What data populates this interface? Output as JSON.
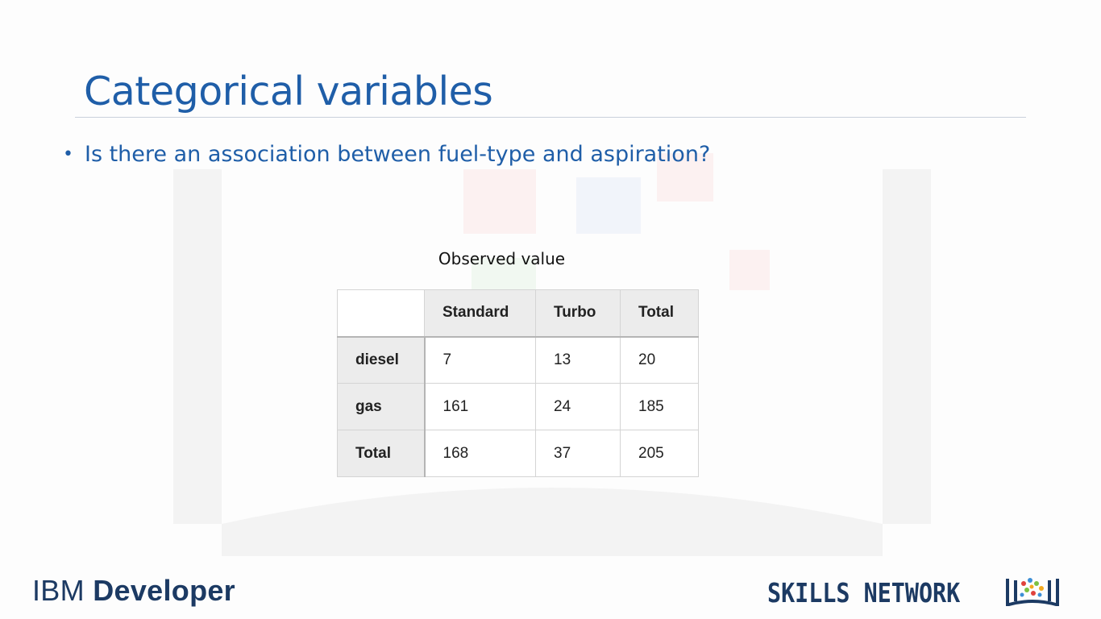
{
  "slide": {
    "title": "Categorical variables",
    "bullet": "Is there an association between fuel-type and aspiration?"
  },
  "table": {
    "caption": "Observed value",
    "columns": [
      "Standard",
      "Turbo",
      "Total"
    ],
    "rows": [
      {
        "label": "diesel",
        "values": [
          "7",
          "13",
          "20"
        ]
      },
      {
        "label": "gas",
        "values": [
          "161",
          "24",
          "185"
        ]
      },
      {
        "label": "Total",
        "values": [
          "168",
          "37",
          "205"
        ]
      }
    ]
  },
  "footer": {
    "ibm_prefix": "IBM",
    "ibm_suffix": "Developer",
    "skills": "SKILLS NETWORK"
  },
  "colors": {
    "title": "#1f5ea8",
    "logo": "#1c3a63"
  }
}
